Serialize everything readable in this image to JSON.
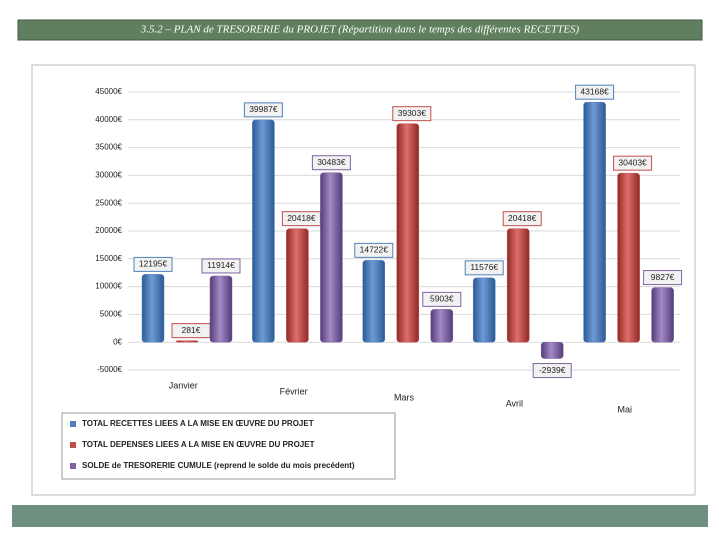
{
  "chart_data": {
    "type": "bar",
    "title": "3.5.2 – PLAN de TRESORERIE du PROJET (Répartition dans le temps des différentes RECETTES)",
    "categories": [
      "Janvier",
      "Février",
      "Mars",
      "Avril",
      "Mai"
    ],
    "series": [
      {
        "name": "TOTAL RECETTES LIEES A LA MISE EN ŒUVRE DU PROJET",
        "color": "#4f81bd",
        "values": [
          12195,
          39987,
          14722,
          11576,
          43168
        ],
        "value_labels": [
          "12195€",
          "39987€",
          "14722€",
          "11576€",
          "43168€"
        ]
      },
      {
        "name": "TOTAL DEPENSES LIEES A LA MISE EN ŒUVRE DU PROJET",
        "color": "#c0504d",
        "values": [
          281,
          20418,
          39303,
          20418,
          30403
        ],
        "value_labels": [
          "281€",
          "20418€",
          "39303€",
          "20418€",
          "30403€"
        ]
      },
      {
        "name": "SOLDE de TRESORERIE CUMULE (reprend le solde du mois precédent)",
        "color": "#8064a2",
        "values": [
          11914,
          30483,
          5903,
          -2939,
          9827
        ],
        "value_labels": [
          "11914€",
          "30483€",
          "5903€",
          "-2939€",
          "9827€"
        ]
      }
    ],
    "ylim": [
      -5000,
      45000
    ],
    "yticks": [
      {
        "value": -5000,
        "label": "-5000€"
      },
      {
        "value": 0,
        "label": "0€"
      },
      {
        "value": 5000,
        "label": "5000€"
      },
      {
        "value": 10000,
        "label": "10000€"
      },
      {
        "value": 15000,
        "label": "15000€"
      },
      {
        "value": 20000,
        "label": "20000€"
      },
      {
        "value": 25000,
        "label": "25000€"
      },
      {
        "value": 30000,
        "label": "30000€"
      },
      {
        "value": 35000,
        "label": "35000€"
      },
      {
        "value": 40000,
        "label": "40000€"
      },
      {
        "value": 45000,
        "label": "45000€"
      }
    ],
    "grid": true
  }
}
